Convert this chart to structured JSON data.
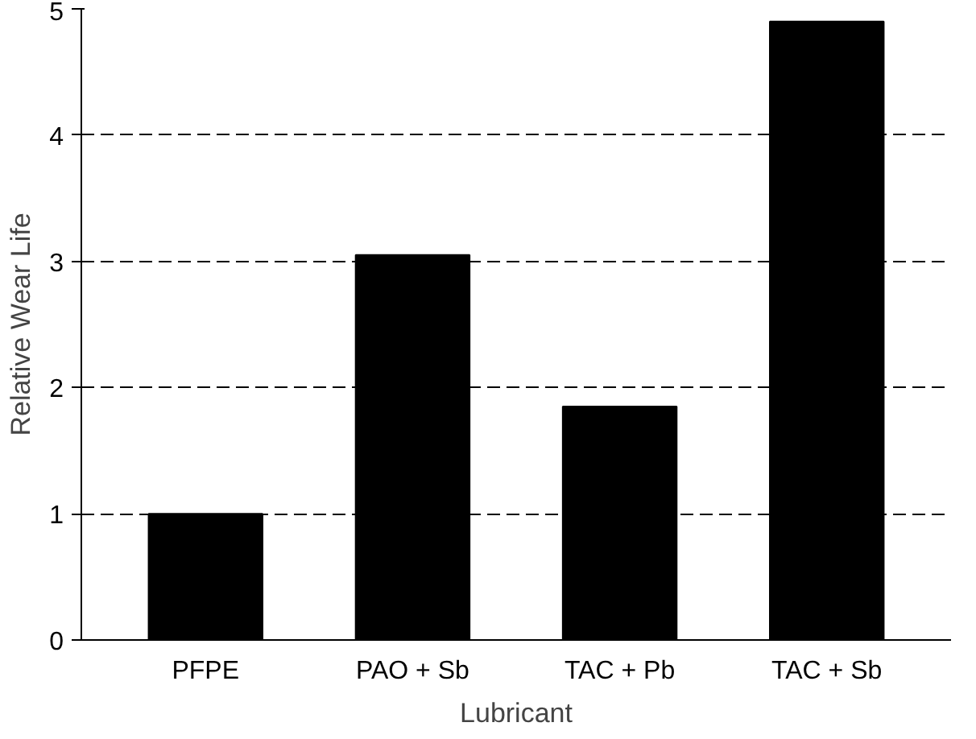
{
  "chart_data": {
    "type": "bar",
    "xlabel": "Lubricant",
    "ylabel": "Relative Wear Life",
    "categories": [
      "PFPE",
      "PAO + Sb",
      "TAC + Pb",
      "TAC + Sb"
    ],
    "values": [
      1,
      3.05,
      1.85,
      4.9
    ],
    "color": "#000000",
    "ylim": [
      0,
      5
    ],
    "yticks": [
      0,
      1,
      2,
      3,
      4,
      5
    ],
    "grid": "y"
  }
}
